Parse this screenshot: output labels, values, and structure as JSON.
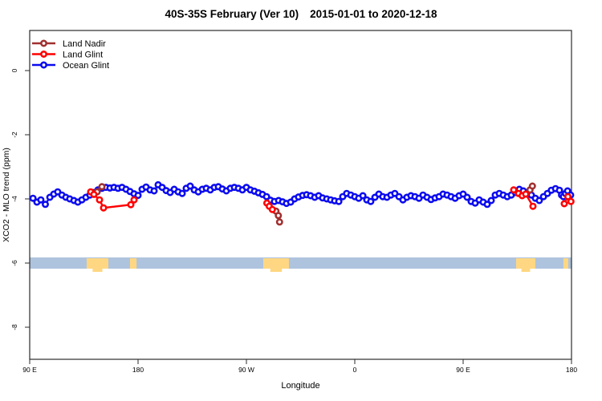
{
  "title": {
    "left": "40S-35S February (Ver 10)",
    "right": "2015-01-01 to 2020-12-18"
  },
  "chart_data": {
    "type": "scatter",
    "title": "40S-35S February (Ver 10)  2015-01-01 to 2020-12-18",
    "xlabel": "Longitude",
    "ylabel": "XCO2 - MLO trend (ppm)",
    "xlim": [
      90,
      540
    ],
    "ylim": [
      -9,
      1.25
    ],
    "grid": false,
    "legend_position": "top-left",
    "x_ticks": {
      "values": [
        90,
        180,
        270,
        360,
        450,
        540
      ],
      "labels": [
        "90 E",
        "180",
        "90 W",
        "0",
        "90 E",
        "180"
      ]
    },
    "y_ticks": {
      "values": [
        0,
        -2,
        -4,
        -6,
        -8
      ],
      "labels": [
        "0",
        "-2",
        "-4",
        "-6",
        "-8"
      ]
    },
    "map_strip": {
      "value": -6,
      "ocean_color": "#AEC3DD",
      "land_color": "#FFD782",
      "land_patches": [
        {
          "lon": [
            137.3,
            155.3
          ],
          "tail": true
        },
        {
          "lon": [
            173.3,
            178.7
          ],
          "tail": false
        },
        {
          "lon": [
            284.0,
            305.3
          ],
          "tail": true
        },
        {
          "lon": [
            494.0,
            510.0
          ],
          "tail": true
        },
        {
          "lon": [
            533.3,
            537.3
          ],
          "tail": false
        }
      ]
    },
    "series": [
      {
        "name": "Land Nadir",
        "color": "#A03030",
        "segments": [
          [
            [
              146.0,
              -3.78
            ],
            [
              150.0,
              -3.62
            ]
          ],
          [
            [
              294.5,
              -4.38
            ],
            [
              296.5,
              -4.52
            ],
            [
              297.5,
              -4.72
            ]
          ],
          [
            [
              505.5,
              -3.72
            ],
            [
              507.5,
              -3.6
            ]
          ]
        ]
      },
      {
        "name": "Land Glint",
        "color": "#FF0000",
        "segments": [
          [
            [
              140.7,
              -3.78
            ],
            [
              143.3,
              -3.86
            ],
            [
              148.0,
              -4.03
            ],
            [
              151.3,
              -4.28
            ],
            [
              174.0,
              -4.18
            ],
            [
              176.7,
              -4.03
            ]
          ],
          [
            [
              287.0,
              -4.13
            ],
            [
              289.0,
              -4.23
            ],
            [
              291.5,
              -4.33
            ]
          ],
          [
            [
              492.0,
              -3.72
            ],
            [
              496.0,
              -3.83
            ],
            [
              499.0,
              -3.9
            ],
            [
              502.0,
              -3.85
            ],
            [
              508.0,
              -4.23
            ]
          ],
          [
            [
              534.0,
              -4.15
            ],
            [
              537.0,
              -3.93
            ],
            [
              539.5,
              -4.08
            ]
          ]
        ]
      },
      {
        "name": "Ocean Glint",
        "color": "#0B0BEE",
        "segments": [
          [
            [
              92.7,
              -3.98
            ],
            [
              96.0,
              -4.1
            ],
            [
              99.3,
              -4.03
            ],
            [
              103.0,
              -4.17
            ],
            [
              106.7,
              -3.95
            ],
            [
              110.0,
              -3.85
            ],
            [
              113.3,
              -3.78
            ],
            [
              116.7,
              -3.88
            ],
            [
              120.0,
              -3.95
            ],
            [
              123.3,
              -4.0
            ],
            [
              126.7,
              -4.05
            ],
            [
              130.0,
              -4.1
            ],
            [
              133.3,
              -4.03
            ],
            [
              136.7,
              -3.95
            ],
            [
              140.0,
              -3.88
            ],
            [
              143.3,
              -3.8
            ],
            [
              146.7,
              -3.72
            ],
            [
              150.0,
              -3.67
            ],
            [
              153.3,
              -3.64
            ],
            [
              156.7,
              -3.66
            ],
            [
              160.0,
              -3.64
            ],
            [
              163.3,
              -3.67
            ],
            [
              166.7,
              -3.64
            ],
            [
              170.0,
              -3.7
            ],
            [
              173.3,
              -3.77
            ],
            [
              176.7,
              -3.84
            ],
            [
              180.0,
              -3.89
            ],
            [
              183.3,
              -3.7
            ],
            [
              186.7,
              -3.63
            ],
            [
              190.0,
              -3.72
            ],
            [
              193.3,
              -3.75
            ],
            [
              196.7,
              -3.56
            ],
            [
              200.0,
              -3.64
            ],
            [
              203.3,
              -3.74
            ],
            [
              206.7,
              -3.8
            ],
            [
              210.0,
              -3.7
            ],
            [
              213.3,
              -3.78
            ],
            [
              216.7,
              -3.83
            ],
            [
              220.0,
              -3.67
            ],
            [
              223.3,
              -3.6
            ],
            [
              226.7,
              -3.72
            ],
            [
              230.0,
              -3.78
            ],
            [
              233.3,
              -3.7
            ],
            [
              236.7,
              -3.67
            ],
            [
              240.0,
              -3.72
            ],
            [
              243.3,
              -3.64
            ],
            [
              246.7,
              -3.62
            ],
            [
              250.0,
              -3.69
            ],
            [
              253.3,
              -3.75
            ],
            [
              256.7,
              -3.67
            ],
            [
              260.0,
              -3.64
            ],
            [
              263.3,
              -3.67
            ],
            [
              266.7,
              -3.72
            ],
            [
              270.0,
              -3.64
            ],
            [
              273.3,
              -3.72
            ],
            [
              276.7,
              -3.76
            ],
            [
              280.0,
              -3.81
            ],
            [
              283.3,
              -3.86
            ],
            [
              286.7,
              -3.93
            ],
            [
              290.0,
              -4.04
            ],
            [
              293.3,
              -4.08
            ],
            [
              296.7,
              -4.05
            ],
            [
              300.0,
              -4.09
            ],
            [
              303.3,
              -4.14
            ],
            [
              306.7,
              -4.1
            ],
            [
              310.0,
              -4.0
            ],
            [
              313.3,
              -3.94
            ],
            [
              316.7,
              -3.89
            ],
            [
              320.0,
              -3.87
            ],
            [
              323.3,
              -3.9
            ],
            [
              326.7,
              -3.95
            ],
            [
              330.0,
              -3.9
            ],
            [
              333.3,
              -3.97
            ],
            [
              336.7,
              -4.0
            ],
            [
              340.0,
              -4.03
            ],
            [
              343.3,
              -4.06
            ],
            [
              346.7,
              -4.08
            ],
            [
              350.0,
              -3.93
            ],
            [
              353.3,
              -3.83
            ],
            [
              356.7,
              -3.88
            ],
            [
              360.0,
              -3.93
            ],
            [
              363.3,
              -3.98
            ],
            [
              366.7,
              -3.9
            ],
            [
              370.0,
              -4.03
            ],
            [
              373.3,
              -4.08
            ],
            [
              376.7,
              -3.95
            ],
            [
              380.0,
              -3.85
            ],
            [
              383.3,
              -3.93
            ],
            [
              386.7,
              -3.95
            ],
            [
              390.0,
              -3.88
            ],
            [
              393.3,
              -3.83
            ],
            [
              396.7,
              -3.93
            ],
            [
              400.0,
              -4.03
            ],
            [
              403.3,
              -3.95
            ],
            [
              406.7,
              -3.9
            ],
            [
              410.0,
              -3.93
            ],
            [
              413.3,
              -3.98
            ],
            [
              416.7,
              -3.88
            ],
            [
              420.0,
              -3.95
            ],
            [
              423.3,
              -4.02
            ],
            [
              426.7,
              -3.97
            ],
            [
              430.0,
              -3.93
            ],
            [
              433.3,
              -3.85
            ],
            [
              436.7,
              -3.88
            ],
            [
              440.0,
              -3.93
            ],
            [
              443.3,
              -3.98
            ],
            [
              446.7,
              -3.9
            ],
            [
              450.0,
              -3.85
            ],
            [
              453.3,
              -3.95
            ],
            [
              456.7,
              -4.08
            ],
            [
              460.0,
              -4.13
            ],
            [
              463.3,
              -4.03
            ],
            [
              466.7,
              -4.1
            ],
            [
              470.0,
              -4.17
            ],
            [
              473.3,
              -4.05
            ],
            [
              476.7,
              -3.88
            ],
            [
              480.0,
              -3.83
            ],
            [
              483.3,
              -3.88
            ],
            [
              486.7,
              -3.93
            ],
            [
              490.0,
              -3.88
            ],
            [
              493.3,
              -3.8
            ],
            [
              496.7,
              -3.7
            ],
            [
              500.0,
              -3.75
            ],
            [
              503.3,
              -3.83
            ],
            [
              506.7,
              -3.88
            ],
            [
              510.0,
              -3.98
            ],
            [
              513.3,
              -4.05
            ],
            [
              516.7,
              -3.93
            ],
            [
              520.0,
              -3.83
            ],
            [
              523.3,
              -3.73
            ],
            [
              526.7,
              -3.68
            ],
            [
              530.0,
              -3.73
            ],
            [
              531.7,
              -3.88
            ],
            [
              533.3,
              -3.93
            ],
            [
              535.0,
              -3.83
            ],
            [
              536.7,
              -3.75
            ],
            [
              539.3,
              -3.88
            ]
          ]
        ]
      }
    ]
  }
}
